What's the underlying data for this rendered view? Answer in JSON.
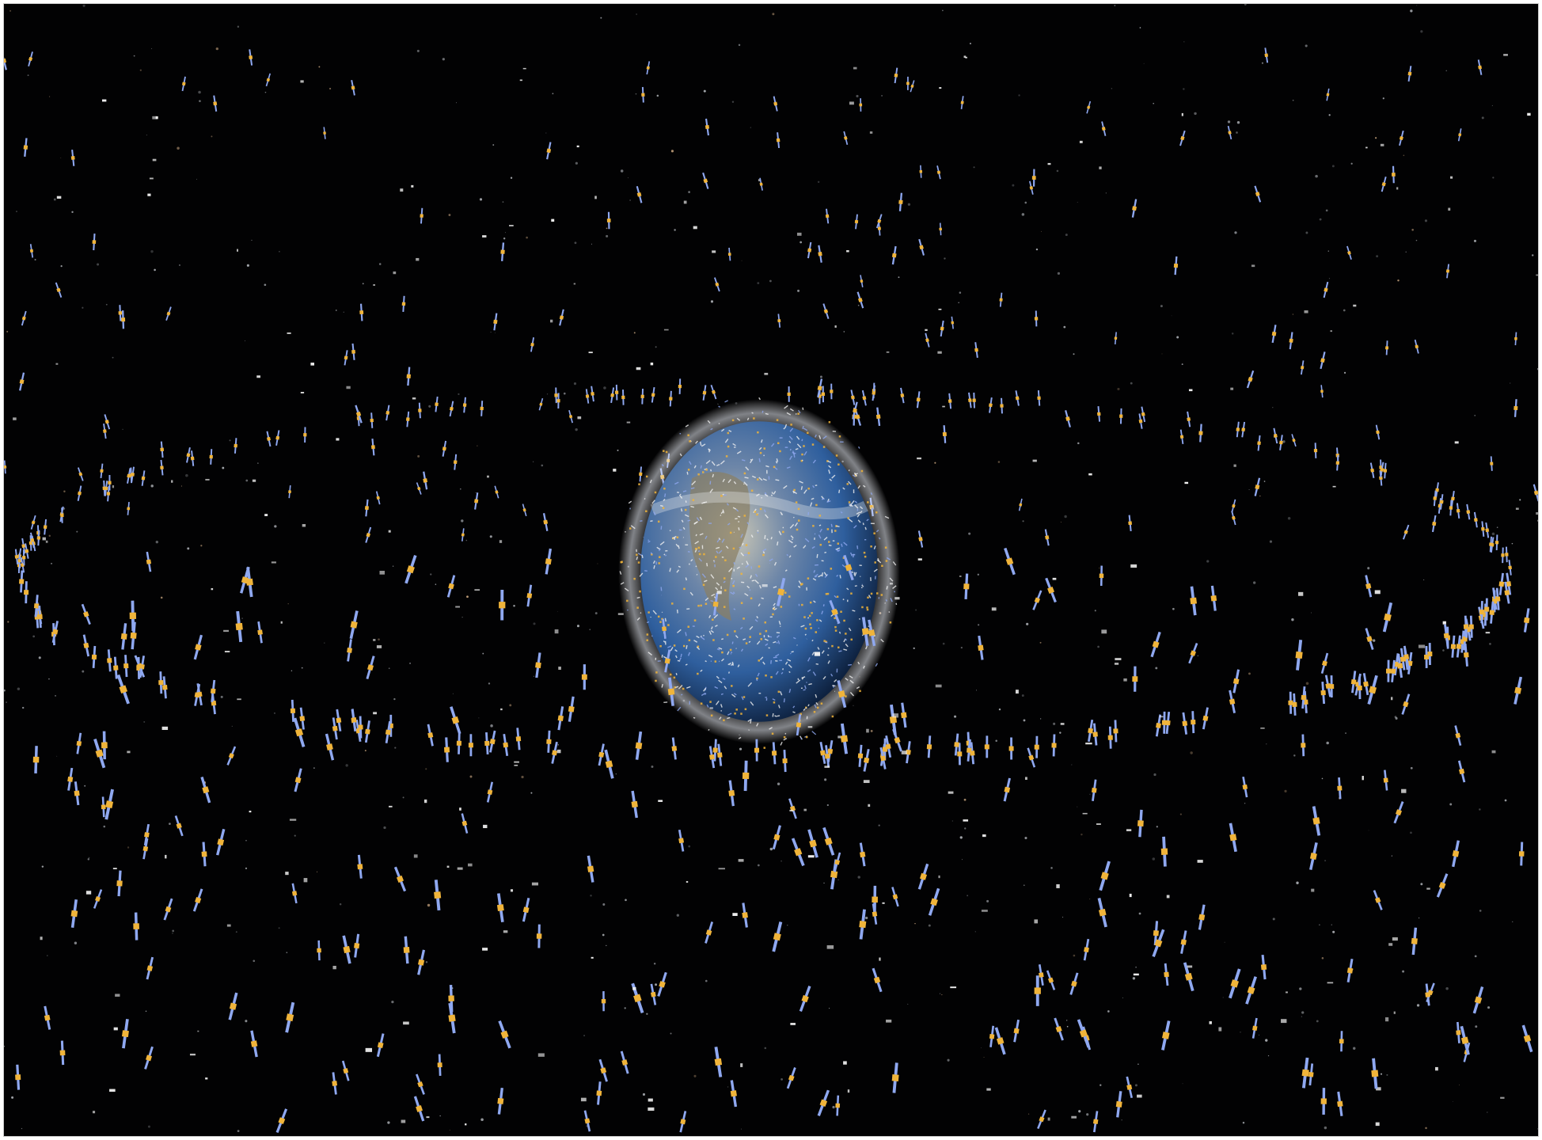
{
  "scene": {
    "subject": "earth-with-orbital-satellites-and-debris",
    "colors": {
      "space": "#020203",
      "earth_ocean": "#2f5f9e",
      "earth_land": "#8a7f62",
      "earth_cloud": "#e9ecef",
      "satellite_panel": "#8fa8f0",
      "satellite_body": "#f0b43a",
      "debris": "#f2f2f2",
      "frame_border": "#c8c8c8"
    }
  }
}
